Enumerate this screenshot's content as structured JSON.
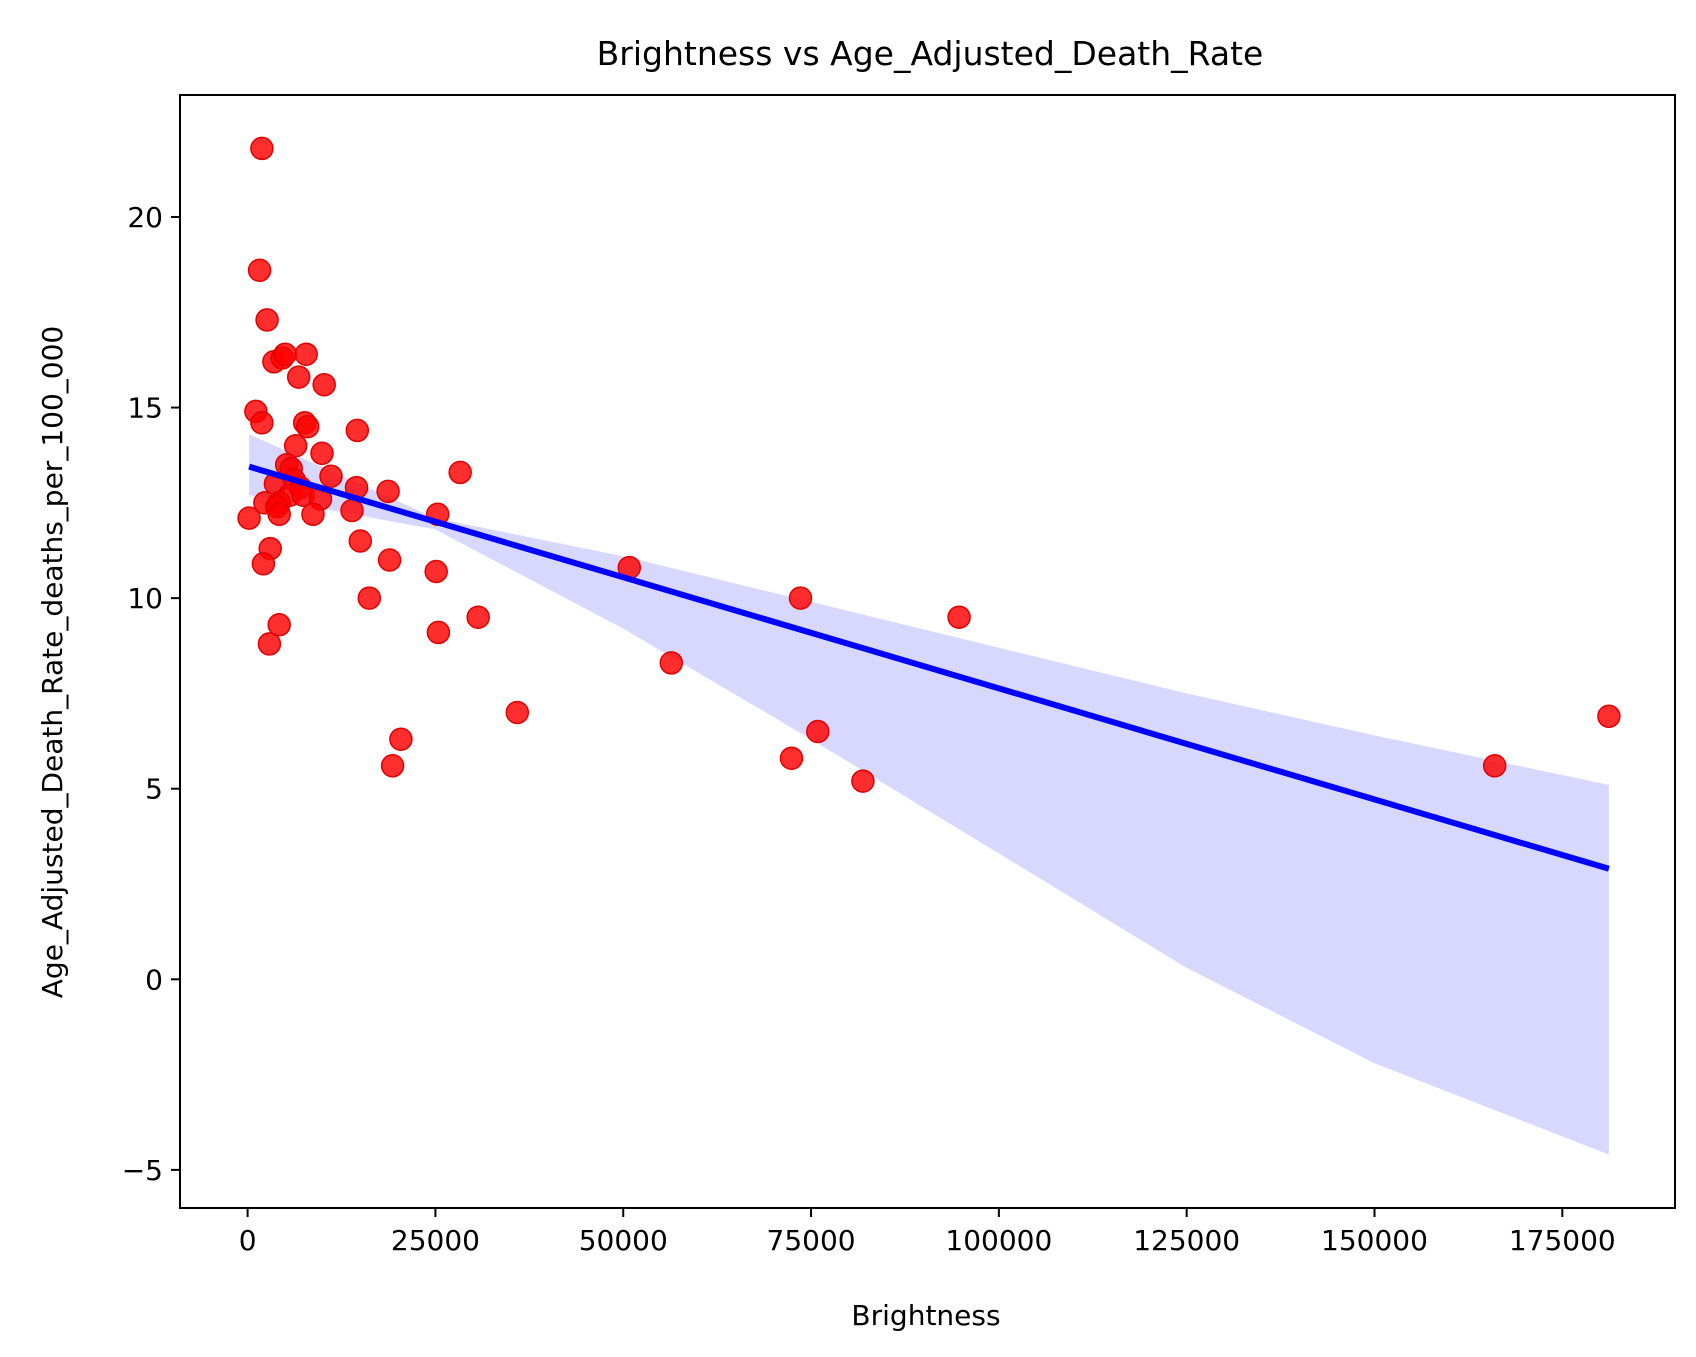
{
  "chart_data": {
    "type": "scatter",
    "title": "Brightness vs Age_Adjusted_Death_Rate",
    "xlabel": "Brightness",
    "ylabel": "Age_Adjusted_Death_Rate_deaths_per_100_000",
    "xlim": [
      -9000,
      190000
    ],
    "ylim": [
      -6,
      23.2
    ],
    "xticks": [
      0,
      25000,
      50000,
      75000,
      100000,
      125000,
      150000,
      175000
    ],
    "xtick_labels": [
      "0",
      "25000",
      "50000",
      "75000",
      "100000",
      "125000",
      "150000",
      "175000"
    ],
    "yticks": [
      -5,
      0,
      5,
      10,
      15,
      20
    ],
    "ytick_labels": [
      "−5",
      "0",
      "5",
      "10",
      "15",
      "20"
    ],
    "grid": false,
    "colors": {
      "points": "#ff0000",
      "regression_line": "#0000ff",
      "confidence_band": "#d8d8ff"
    },
    "series": [
      {
        "name": "observations",
        "points": [
          [
            1900,
            21.8
          ],
          [
            1600,
            18.6
          ],
          [
            2600,
            17.3
          ],
          [
            3500,
            16.2
          ],
          [
            4600,
            16.3
          ],
          [
            5000,
            16.4
          ],
          [
            7800,
            16.4
          ],
          [
            6800,
            15.8
          ],
          [
            10200,
            15.6
          ],
          [
            1100,
            14.9
          ],
          [
            1900,
            14.6
          ],
          [
            7600,
            14.6
          ],
          [
            8000,
            14.5
          ],
          [
            14600,
            14.4
          ],
          [
            6400,
            14.0
          ],
          [
            9900,
            13.8
          ],
          [
            5200,
            13.5
          ],
          [
            5800,
            13.4
          ],
          [
            28300,
            13.3
          ],
          [
            11100,
            13.2
          ],
          [
            6200,
            13.1
          ],
          [
            3700,
            13.0
          ],
          [
            7000,
            12.9
          ],
          [
            14500,
            12.9
          ],
          [
            18700,
            12.8
          ],
          [
            5600,
            12.7
          ],
          [
            7400,
            12.7
          ],
          [
            9700,
            12.6
          ],
          [
            4200,
            12.5
          ],
          [
            2300,
            12.5
          ],
          [
            3900,
            12.4
          ],
          [
            13900,
            12.3
          ],
          [
            200,
            12.1
          ],
          [
            4200,
            12.2
          ],
          [
            8700,
            12.2
          ],
          [
            25300,
            12.2
          ],
          [
            15000,
            11.5
          ],
          [
            3000,
            11.3
          ],
          [
            18900,
            11.0
          ],
          [
            2100,
            10.9
          ],
          [
            50800,
            10.8
          ],
          [
            25100,
            10.7
          ],
          [
            16200,
            10.0
          ],
          [
            73600,
            10.0
          ],
          [
            30700,
            9.5
          ],
          [
            94700,
            9.5
          ],
          [
            4200,
            9.3
          ],
          [
            25400,
            9.1
          ],
          [
            56400,
            8.3
          ],
          [
            2900,
            8.8
          ],
          [
            35900,
            7.0
          ],
          [
            181200,
            6.9
          ],
          [
            75900,
            6.5
          ],
          [
            20400,
            6.3
          ],
          [
            72400,
            5.8
          ],
          [
            19300,
            5.6
          ],
          [
            166000,
            5.6
          ],
          [
            81900,
            5.2
          ]
        ]
      }
    ],
    "regression": {
      "x_start": 200,
      "x_end": 181200,
      "y_start": 13.45,
      "y_end": 2.9
    },
    "confidence_band": {
      "x": [
        200,
        25000,
        50000,
        75000,
        100000,
        125000,
        150000,
        181200
      ],
      "upper": [
        14.3,
        12.1,
        11.1,
        9.9,
        8.7,
        7.5,
        6.4,
        5.1
      ],
      "lower": [
        12.7,
        11.8,
        9.2,
        6.3,
        3.3,
        0.3,
        -2.2,
        -4.6
      ]
    }
  }
}
